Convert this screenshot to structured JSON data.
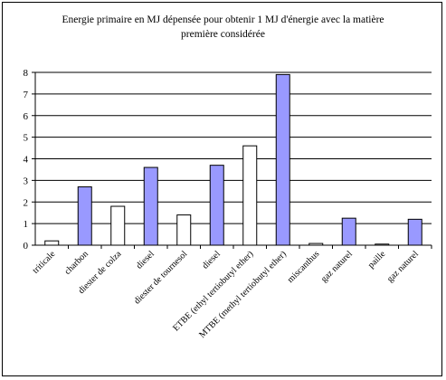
{
  "chart_data": {
    "type": "bar",
    "title": "Energie primaire en MJ dépensée pour obtenir 1 MJ d'énergie avec la matière première considérée",
    "title_line1": "Energie primaire en MJ dépensée pour obtenir 1 MJ d'énergie avec la matière",
    "title_line2": "première considérée",
    "categories": [
      "triticale",
      "charbon",
      "diester de colza",
      "diesel",
      "diester de tournesol",
      "diesel",
      "ETBE (ethyl tertiobutyl ether)",
      "MTBE (methyl tertiobutyl ether)",
      "miscanthus",
      "gaz naturel",
      "paille",
      "gaz naturel"
    ],
    "values": [
      0.2,
      2.7,
      1.8,
      3.6,
      1.4,
      3.7,
      4.6,
      7.9,
      0.08,
      1.25,
      0.05,
      1.2
    ],
    "bar_fill": [
      "white",
      "blue",
      "white",
      "blue",
      "white",
      "blue",
      "white",
      "blue",
      "white",
      "blue",
      "white",
      "blue"
    ],
    "colors": {
      "blue": "#9999ff",
      "white": "#ffffff",
      "grid": "#000000"
    },
    "ylim": [
      0,
      8
    ],
    "yticks": [
      0,
      1,
      2,
      3,
      4,
      5,
      6,
      7,
      8
    ],
    "grid": true,
    "legend": "none"
  }
}
